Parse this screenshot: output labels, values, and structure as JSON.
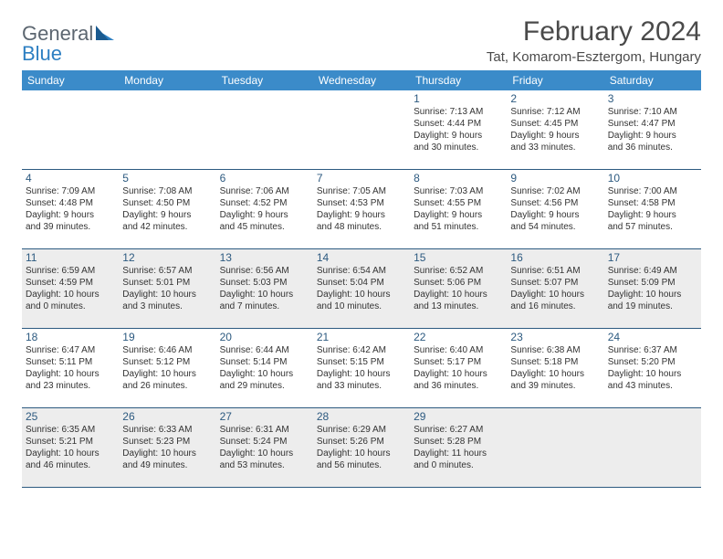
{
  "logo": {
    "word1": "General",
    "word2": "Blue"
  },
  "title": "February 2024",
  "location": "Tat, Komarom-Esztergom, Hungary",
  "header_bg": "#3b8bc9",
  "row_border": "#2d5a80",
  "alt_bg": "#ededed",
  "daynum_color": "#2d5a80",
  "text_color": "#333333",
  "dow": [
    "Sunday",
    "Monday",
    "Tuesday",
    "Wednesday",
    "Thursday",
    "Friday",
    "Saturday"
  ],
  "weeks": [
    {
      "alt": false,
      "cells": [
        null,
        null,
        null,
        null,
        {
          "n": "1",
          "sr": "Sunrise: 7:13 AM",
          "ss": "Sunset: 4:44 PM",
          "d1": "Daylight: 9 hours",
          "d2": "and 30 minutes."
        },
        {
          "n": "2",
          "sr": "Sunrise: 7:12 AM",
          "ss": "Sunset: 4:45 PM",
          "d1": "Daylight: 9 hours",
          "d2": "and 33 minutes."
        },
        {
          "n": "3",
          "sr": "Sunrise: 7:10 AM",
          "ss": "Sunset: 4:47 PM",
          "d1": "Daylight: 9 hours",
          "d2": "and 36 minutes."
        }
      ]
    },
    {
      "alt": false,
      "cells": [
        {
          "n": "4",
          "sr": "Sunrise: 7:09 AM",
          "ss": "Sunset: 4:48 PM",
          "d1": "Daylight: 9 hours",
          "d2": "and 39 minutes."
        },
        {
          "n": "5",
          "sr": "Sunrise: 7:08 AM",
          "ss": "Sunset: 4:50 PM",
          "d1": "Daylight: 9 hours",
          "d2": "and 42 minutes."
        },
        {
          "n": "6",
          "sr": "Sunrise: 7:06 AM",
          "ss": "Sunset: 4:52 PM",
          "d1": "Daylight: 9 hours",
          "d2": "and 45 minutes."
        },
        {
          "n": "7",
          "sr": "Sunrise: 7:05 AM",
          "ss": "Sunset: 4:53 PM",
          "d1": "Daylight: 9 hours",
          "d2": "and 48 minutes."
        },
        {
          "n": "8",
          "sr": "Sunrise: 7:03 AM",
          "ss": "Sunset: 4:55 PM",
          "d1": "Daylight: 9 hours",
          "d2": "and 51 minutes."
        },
        {
          "n": "9",
          "sr": "Sunrise: 7:02 AM",
          "ss": "Sunset: 4:56 PM",
          "d1": "Daylight: 9 hours",
          "d2": "and 54 minutes."
        },
        {
          "n": "10",
          "sr": "Sunrise: 7:00 AM",
          "ss": "Sunset: 4:58 PM",
          "d1": "Daylight: 9 hours",
          "d2": "and 57 minutes."
        }
      ]
    },
    {
      "alt": true,
      "cells": [
        {
          "n": "11",
          "sr": "Sunrise: 6:59 AM",
          "ss": "Sunset: 4:59 PM",
          "d1": "Daylight: 10 hours",
          "d2": "and 0 minutes."
        },
        {
          "n": "12",
          "sr": "Sunrise: 6:57 AM",
          "ss": "Sunset: 5:01 PM",
          "d1": "Daylight: 10 hours",
          "d2": "and 3 minutes."
        },
        {
          "n": "13",
          "sr": "Sunrise: 6:56 AM",
          "ss": "Sunset: 5:03 PM",
          "d1": "Daylight: 10 hours",
          "d2": "and 7 minutes."
        },
        {
          "n": "14",
          "sr": "Sunrise: 6:54 AM",
          "ss": "Sunset: 5:04 PM",
          "d1": "Daylight: 10 hours",
          "d2": "and 10 minutes."
        },
        {
          "n": "15",
          "sr": "Sunrise: 6:52 AM",
          "ss": "Sunset: 5:06 PM",
          "d1": "Daylight: 10 hours",
          "d2": "and 13 minutes."
        },
        {
          "n": "16",
          "sr": "Sunrise: 6:51 AM",
          "ss": "Sunset: 5:07 PM",
          "d1": "Daylight: 10 hours",
          "d2": "and 16 minutes."
        },
        {
          "n": "17",
          "sr": "Sunrise: 6:49 AM",
          "ss": "Sunset: 5:09 PM",
          "d1": "Daylight: 10 hours",
          "d2": "and 19 minutes."
        }
      ]
    },
    {
      "alt": false,
      "cells": [
        {
          "n": "18",
          "sr": "Sunrise: 6:47 AM",
          "ss": "Sunset: 5:11 PM",
          "d1": "Daylight: 10 hours",
          "d2": "and 23 minutes."
        },
        {
          "n": "19",
          "sr": "Sunrise: 6:46 AM",
          "ss": "Sunset: 5:12 PM",
          "d1": "Daylight: 10 hours",
          "d2": "and 26 minutes."
        },
        {
          "n": "20",
          "sr": "Sunrise: 6:44 AM",
          "ss": "Sunset: 5:14 PM",
          "d1": "Daylight: 10 hours",
          "d2": "and 29 minutes."
        },
        {
          "n": "21",
          "sr": "Sunrise: 6:42 AM",
          "ss": "Sunset: 5:15 PM",
          "d1": "Daylight: 10 hours",
          "d2": "and 33 minutes."
        },
        {
          "n": "22",
          "sr": "Sunrise: 6:40 AM",
          "ss": "Sunset: 5:17 PM",
          "d1": "Daylight: 10 hours",
          "d2": "and 36 minutes."
        },
        {
          "n": "23",
          "sr": "Sunrise: 6:38 AM",
          "ss": "Sunset: 5:18 PM",
          "d1": "Daylight: 10 hours",
          "d2": "and 39 minutes."
        },
        {
          "n": "24",
          "sr": "Sunrise: 6:37 AM",
          "ss": "Sunset: 5:20 PM",
          "d1": "Daylight: 10 hours",
          "d2": "and 43 minutes."
        }
      ]
    },
    {
      "alt": true,
      "cells": [
        {
          "n": "25",
          "sr": "Sunrise: 6:35 AM",
          "ss": "Sunset: 5:21 PM",
          "d1": "Daylight: 10 hours",
          "d2": "and 46 minutes."
        },
        {
          "n": "26",
          "sr": "Sunrise: 6:33 AM",
          "ss": "Sunset: 5:23 PM",
          "d1": "Daylight: 10 hours",
          "d2": "and 49 minutes."
        },
        {
          "n": "27",
          "sr": "Sunrise: 6:31 AM",
          "ss": "Sunset: 5:24 PM",
          "d1": "Daylight: 10 hours",
          "d2": "and 53 minutes."
        },
        {
          "n": "28",
          "sr": "Sunrise: 6:29 AM",
          "ss": "Sunset: 5:26 PM",
          "d1": "Daylight: 10 hours",
          "d2": "and 56 minutes."
        },
        {
          "n": "29",
          "sr": "Sunrise: 6:27 AM",
          "ss": "Sunset: 5:28 PM",
          "d1": "Daylight: 11 hours",
          "d2": "and 0 minutes."
        },
        null,
        null
      ]
    }
  ]
}
